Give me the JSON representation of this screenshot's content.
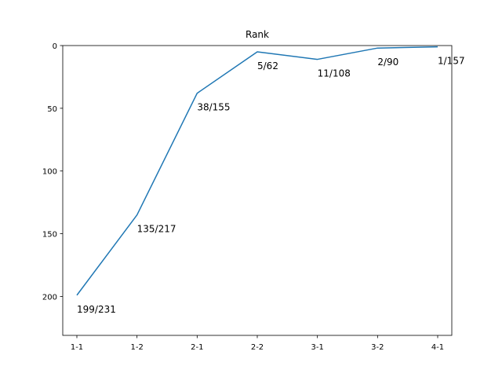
{
  "chart_data": {
    "type": "line",
    "title": "Rank",
    "xlabel": "",
    "ylabel": "",
    "categories": [
      "1-1",
      "1-2",
      "2-1",
      "2-2",
      "3-1",
      "3-2",
      "4-1"
    ],
    "series": [
      {
        "values": [
          199,
          135,
          38,
          5,
          11,
          2,
          1
        ],
        "labels": [
          "199/231",
          "135/217",
          "38/155",
          "5/62",
          "11/108",
          "2/90",
          "1/157"
        ],
        "color": "#1f77b4"
      }
    ],
    "y_inverted": true,
    "ylim": [
      0,
      231
    ],
    "yticks": [
      0,
      50,
      100,
      150,
      200
    ],
    "grid": false,
    "legend": "none"
  }
}
